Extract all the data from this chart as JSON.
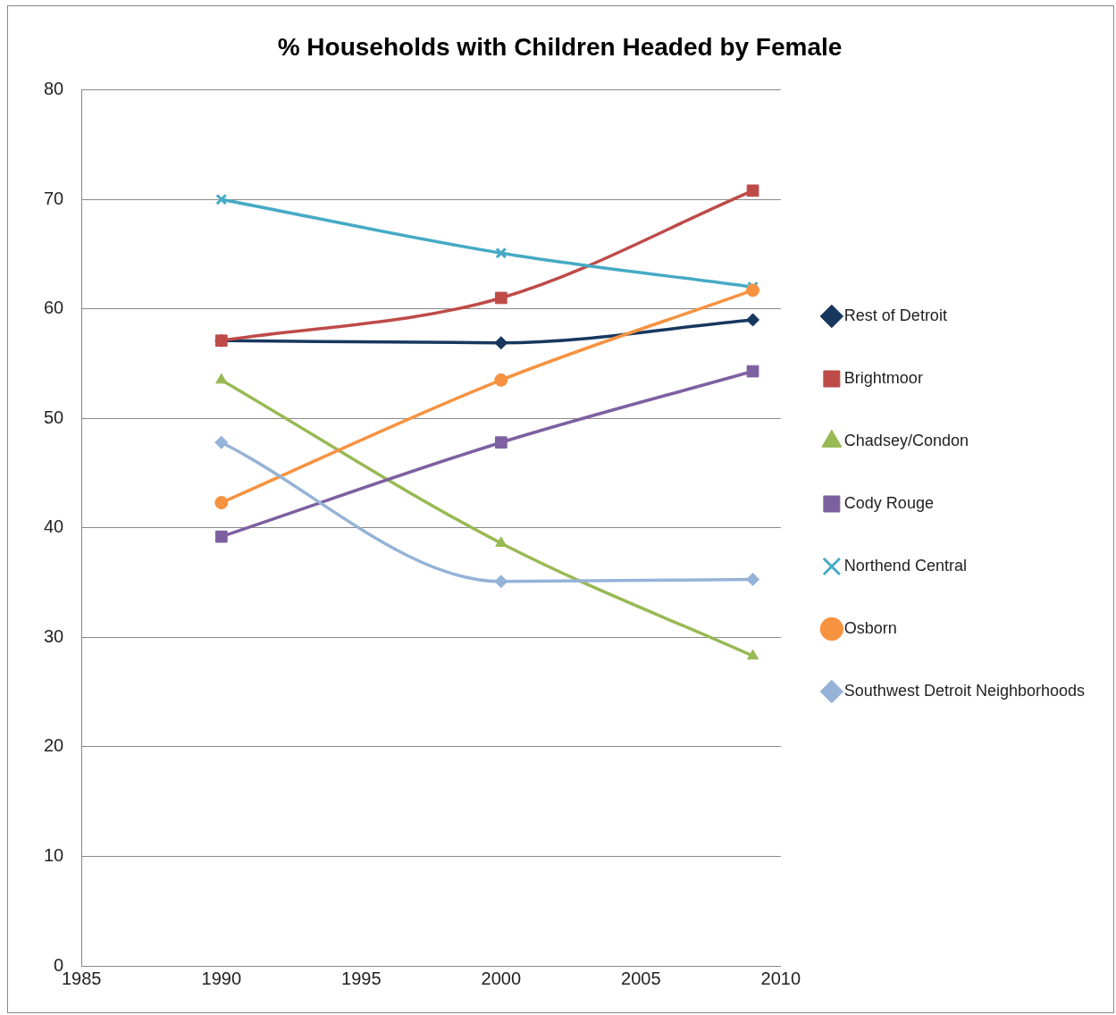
{
  "chart_data": {
    "type": "line",
    "title": "% Households with Children Headed by Female",
    "x": [
      1990,
      2000,
      2009
    ],
    "xlim": [
      1985,
      2010
    ],
    "xticks": [
      1985,
      1990,
      1995,
      2000,
      2005,
      2010
    ],
    "ylim": [
      0,
      80
    ],
    "yticks": [
      0,
      10,
      20,
      30,
      40,
      50,
      60,
      70,
      80
    ],
    "grid": "y",
    "legend": "right",
    "series": [
      {
        "name": "Rest of Detroit",
        "color": "#17375e",
        "marker": "diamond",
        "values": [
          57.1,
          56.9,
          59.0
        ]
      },
      {
        "name": "Brightmoor",
        "color": "#be4b48",
        "marker": "square",
        "values": [
          57.1,
          61.0,
          70.8
        ]
      },
      {
        "name": "Chadsey/Condon",
        "color": "#98b954",
        "marker": "triangle",
        "values": [
          53.5,
          38.6,
          28.3
        ]
      },
      {
        "name": "Cody Rouge",
        "color": "#7d60a0",
        "marker": "square",
        "values": [
          39.2,
          47.8,
          54.3
        ]
      },
      {
        "name": "Northend Central",
        "color": "#46aac5",
        "marker": "cross",
        "values": [
          70.0,
          65.1,
          62.0
        ]
      },
      {
        "name": "Osborn",
        "color": "#f69240",
        "marker": "circle",
        "values": [
          42.3,
          53.5,
          61.7
        ]
      },
      {
        "name": "Southwest Detroit Neighborhoods",
        "color": "#95b3d7",
        "marker": "diamond",
        "values": [
          47.8,
          35.1,
          35.3
        ]
      }
    ]
  }
}
